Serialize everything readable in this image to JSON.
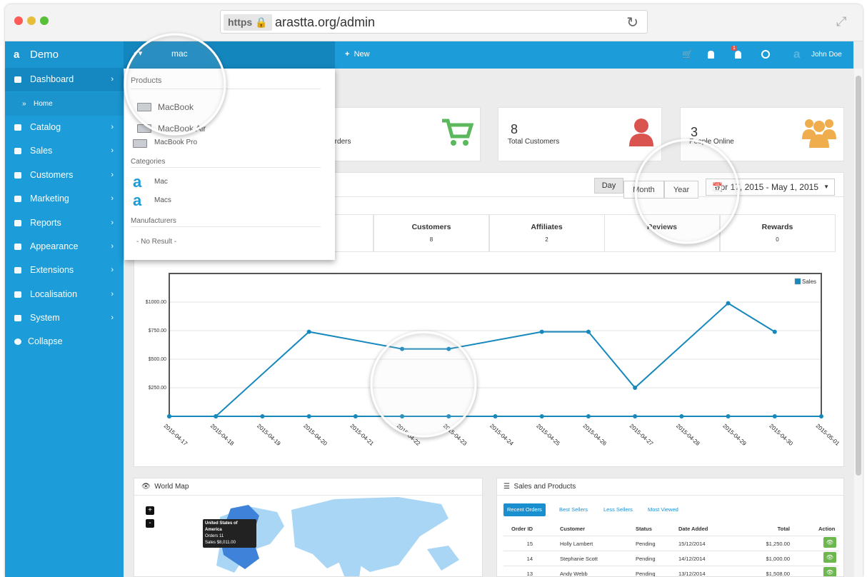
{
  "browser": {
    "protocol": "https",
    "url": "arastta.org/admin"
  },
  "sidebar": {
    "brand": "Demo",
    "dashboard": "Dashboard",
    "home": "Home",
    "menu": [
      "Catalog",
      "Sales",
      "Customers",
      "Marketing",
      "Reports",
      "Appearance",
      "Extensions",
      "Localisation",
      "System"
    ],
    "collapse": "Collapse"
  },
  "topbar": {
    "search": "mac",
    "new": "New",
    "badge": "1",
    "user": "John Doe"
  },
  "search_results": {
    "products_heading": "Products",
    "products": [
      "MacBook",
      "MacBook Air",
      "MacBook Pro"
    ],
    "categories_heading": "Categories",
    "categories": [
      "Mac",
      "Macs"
    ],
    "manufacturers_heading": "Manufacturers",
    "no_result": "- No Result -"
  },
  "stats": [
    {
      "label": "Total Orders"
    },
    {
      "value": 8,
      "label": "Total Customers"
    },
    {
      "value": 3,
      "label": "People Online"
    }
  ],
  "range_buttons": [
    "Day",
    "Month",
    "Year"
  ],
  "date_range": "Apr 17, 2015 - May 1, 2015",
  "summary": [
    {
      "label": "Customers",
      "value": 8
    },
    {
      "label": "Affiliates",
      "value": 2
    },
    {
      "label": "Reviews"
    },
    {
      "label": "Rewards",
      "value": 0
    }
  ],
  "chart_data": {
    "type": "line",
    "x": [
      "2015-04-17",
      "2015-04-18",
      "2015-04-19",
      "2015-04-20",
      "2015-04-21",
      "2015-04-22",
      "2015-04-23",
      "2015-04-24",
      "2015-04-25",
      "2015-04-26",
      "2015-04-27",
      "2015-04-28",
      "2015-04-29",
      "2015-04-30",
      "2015-05-01"
    ],
    "series": [
      {
        "name": "Sales",
        "color": "#1788bb",
        "x": [
          "2015-04-17",
          "2015-04-18",
          "2015-04-20",
          "2015-04-22",
          "2015-04-23",
          "2015-04-25",
          "2015-04-26",
          "2015-04-27",
          "2015-04-29",
          "2015-04-30"
        ],
        "values": [
          0,
          0,
          740,
          590,
          590,
          740,
          740,
          250,
          990,
          740
        ]
      },
      {
        "color": "#1788bb",
        "values": [
          0,
          0,
          0,
          0,
          0,
          0,
          0,
          0,
          0,
          0,
          0,
          0,
          0,
          0,
          0
        ]
      }
    ],
    "ylim": [
      0,
      1250
    ],
    "yticks": [
      {
        "value": 250,
        "label": "$250.00"
      },
      {
        "value": 500,
        "label": "$500.00"
      },
      {
        "value": 750,
        "label": "$750.00"
      },
      {
        "value": 1000,
        "label": "$1000.00"
      }
    ],
    "grid": true,
    "legend": "top-right"
  },
  "world_map": {
    "title": "World Map",
    "zoom_in": "+",
    "zoom_out": "-",
    "tooltip": {
      "country": "United States of America",
      "orders": "Orders 11",
      "sales": "Sales $8,011.00"
    }
  },
  "sales_products": {
    "title": "Sales and Products",
    "tabs": [
      "Recent Orders",
      "Best Sellers",
      "Less Sellers",
      "Most Viewed"
    ],
    "columns": [
      "Order ID",
      "Customer",
      "Status",
      "Date Added",
      "Total",
      "Action"
    ],
    "rows": [
      [
        15,
        "Holly Lambert",
        "Pending",
        "15/12/2014",
        "$1,250.00"
      ],
      [
        14,
        "Stephanie Scott",
        "Pending",
        "14/12/2014",
        "$1,000.00"
      ],
      [
        13,
        "Andy Webb",
        "Pending",
        "13/12/2014",
        "$1,508.00"
      ]
    ]
  }
}
